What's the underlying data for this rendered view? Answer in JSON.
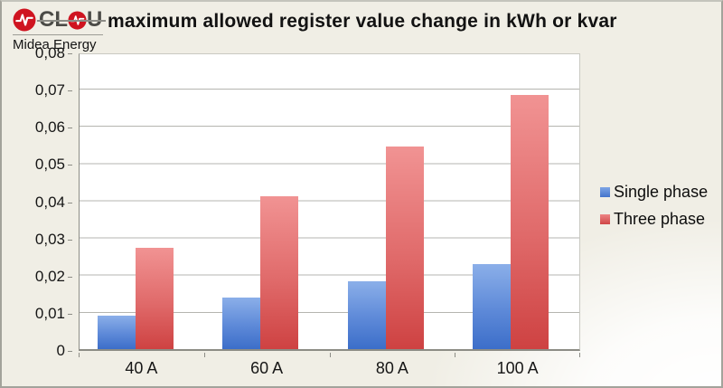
{
  "page": {
    "logo": {
      "brand": "CLOU",
      "brand_left": "CL",
      "brand_right": "U",
      "subtitle": "Midea Energy"
    },
    "title": "maximum allowed register value change in kWh or kvar"
  },
  "chart_data": {
    "type": "bar",
    "title": "maximum allowed register value change in kWh or kvar",
    "categories": [
      "40 A",
      "60 A",
      "80 A",
      "100 A"
    ],
    "series": [
      {
        "name": "Single phase",
        "color": "#4a7ed2",
        "values": [
          0.009,
          0.014,
          0.0185,
          0.023
        ]
      },
      {
        "name": "Three phase",
        "color": "#d95050",
        "values": [
          0.0275,
          0.0415,
          0.055,
          0.069
        ]
      }
    ],
    "xlabel": "",
    "ylabel": "",
    "ylim": [
      0,
      0.08
    ],
    "ytick_step": 0.01,
    "yaxis_labels": [
      "0,08",
      "0,07",
      "0,06",
      "0,05",
      "0,04",
      "0,03",
      "0,02",
      "0,01",
      "0"
    ],
    "decimal_separator": ",",
    "grid": "horizontal",
    "legend_position": "right",
    "plot_bg": "#ffffff",
    "page_bg": "#f0eee5"
  },
  "legend": {
    "items": [
      {
        "label": "Single phase",
        "color": "#4a7ed2"
      },
      {
        "label": "Three phase",
        "color": "#d95050"
      }
    ]
  }
}
